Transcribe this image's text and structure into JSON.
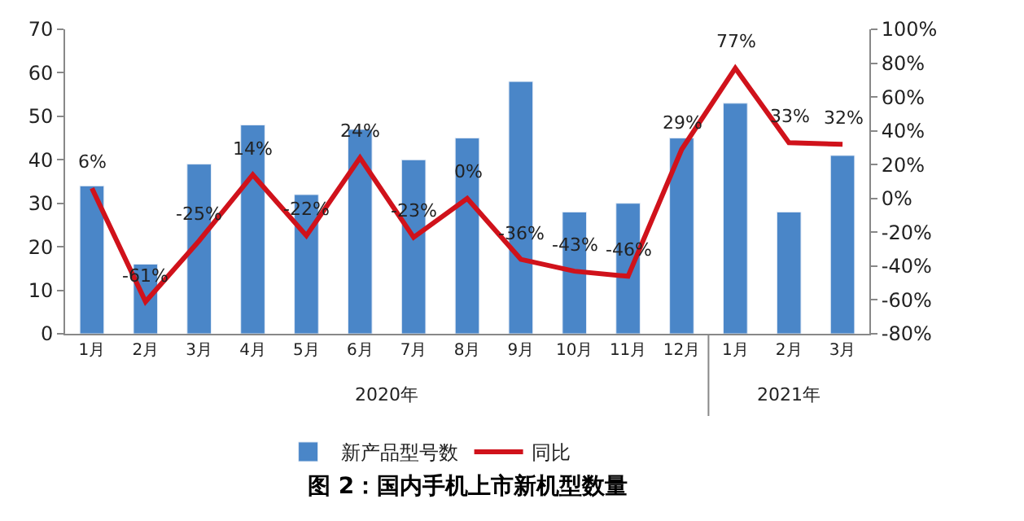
{
  "chart_data": {
    "type": "bar",
    "title": "图 2：国内手机上市新机型数量",
    "categories": [
      "1月",
      "2月",
      "3月",
      "4月",
      "5月",
      "6月",
      "7月",
      "8月",
      "9月",
      "10月",
      "11月",
      "12月",
      "1月",
      "2月",
      "3月"
    ],
    "series": [
      {
        "name": "新产品型号数",
        "color": "#4a86c8",
        "values": [
          34,
          16,
          39,
          48,
          32,
          47,
          40,
          45,
          58,
          28,
          30,
          45,
          53,
          28,
          41
        ]
      },
      {
        "name": "同比",
        "type": "line",
        "axis": "y2",
        "color": "#d0121b",
        "marker": "none",
        "line_style": "solid",
        "values": [
          6,
          -61,
          -25,
          14,
          -22,
          24,
          -23,
          0,
          -36,
          -43,
          -46,
          29,
          77,
          33,
          32
        ],
        "value_labels": [
          "6%",
          "-61%",
          "-25%",
          "14%",
          "-22%",
          "24%",
          "-23%",
          "0%",
          "-36%",
          "-43%",
          "-46%",
          "29%",
          "77%",
          "33%",
          "32%"
        ]
      }
    ],
    "annotations": [
      "2020年",
      "2021年"
    ],
    "ylim": [
      0,
      70
    ],
    "yticks": [
      0,
      10,
      20,
      30,
      40,
      50,
      60,
      70
    ],
    "y2lim": [
      -80,
      100
    ],
    "y2ticks": [
      {
        "value": -80,
        "label": "-80%"
      },
      {
        "value": -60,
        "label": "-60%"
      },
      {
        "value": -40,
        "label": "-40%"
      },
      {
        "value": -20,
        "label": "-20%"
      },
      {
        "value": 0,
        "label": "0%"
      },
      {
        "value": 20,
        "label": "20%"
      },
      {
        "value": 40,
        "label": "40%"
      },
      {
        "value": 60,
        "label": "60%"
      },
      {
        "value": 80,
        "label": "80%"
      },
      {
        "value": 100,
        "label": "100%"
      }
    ],
    "legend": "bottom"
  }
}
